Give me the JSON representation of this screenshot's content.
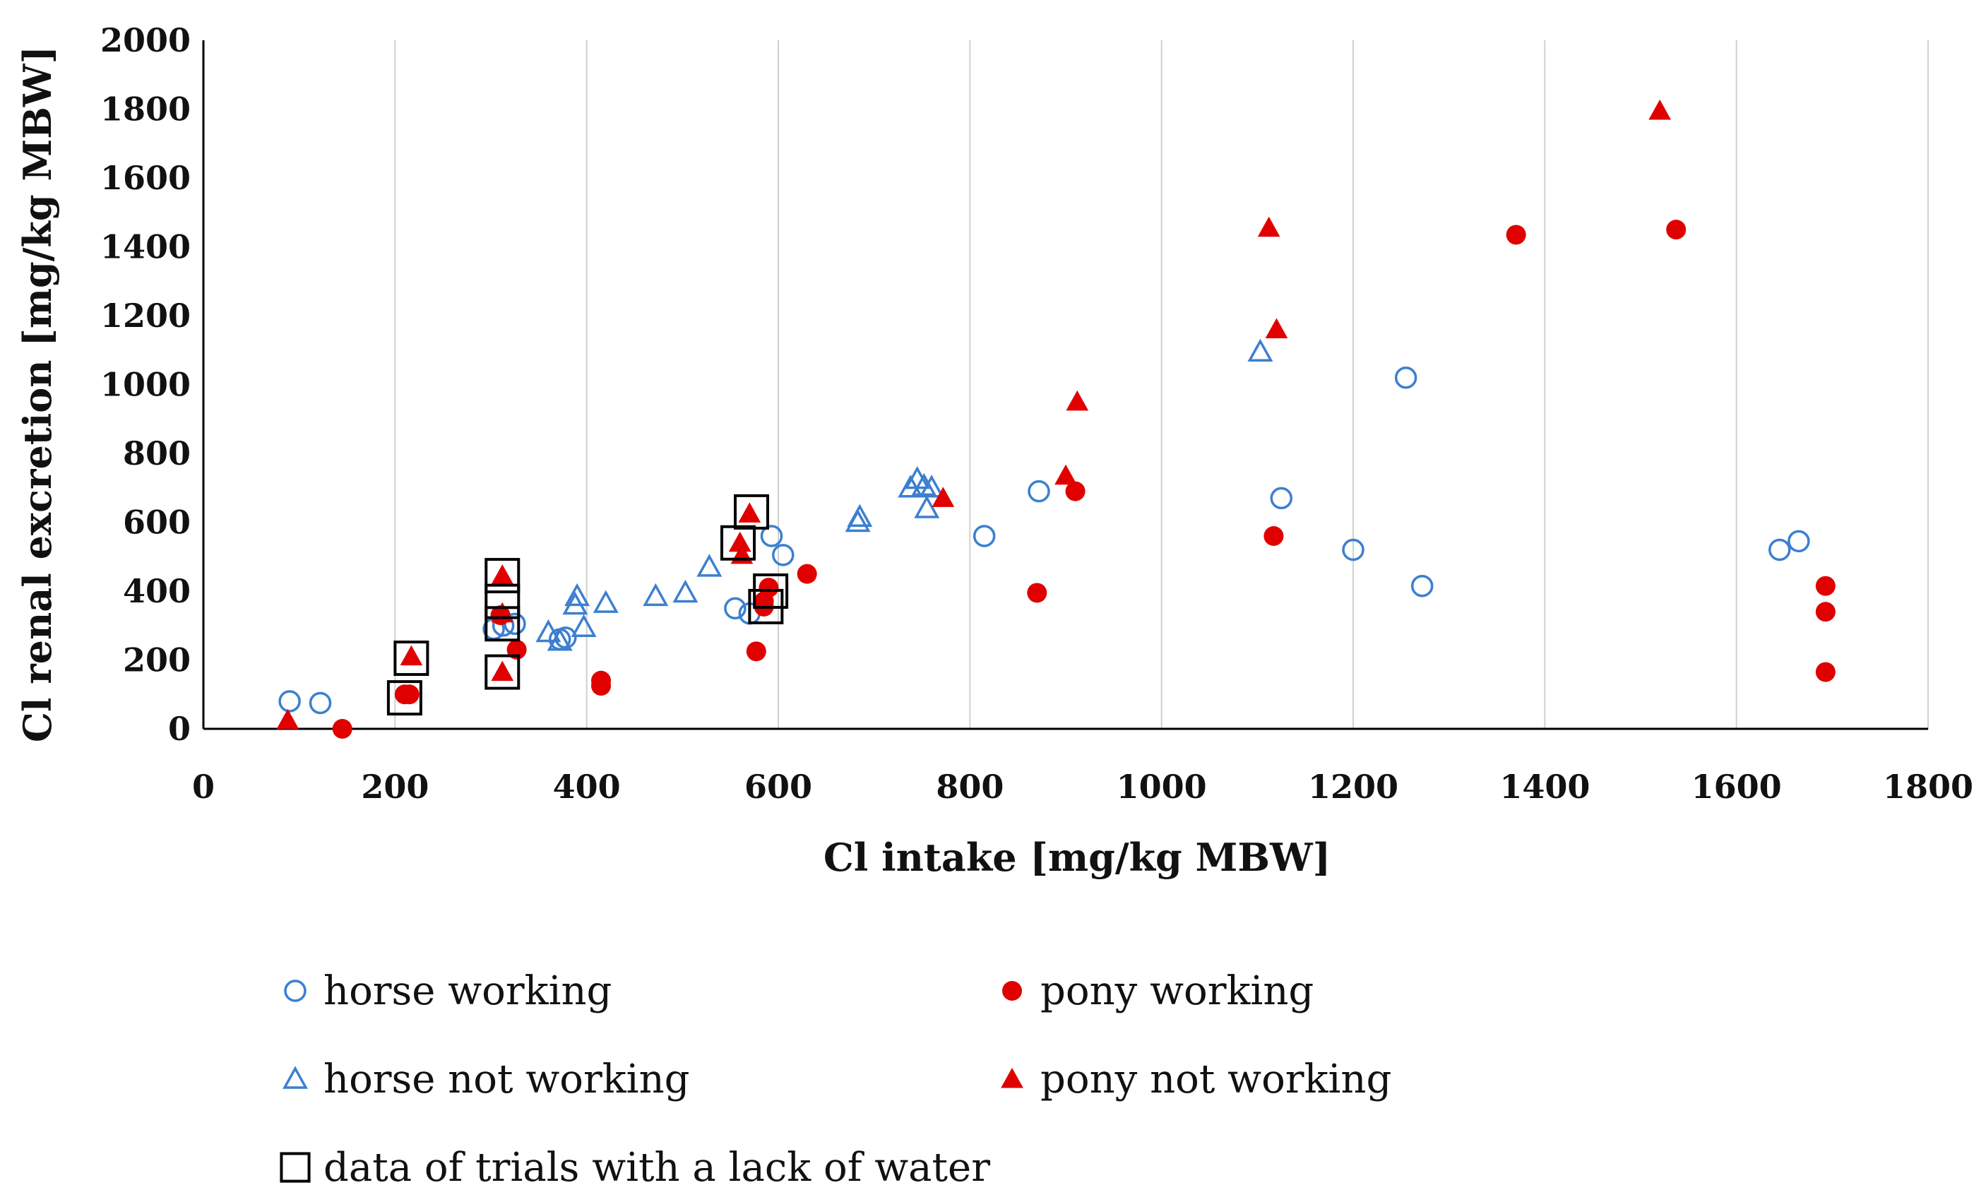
{
  "chart_data": {
    "type": "scatter",
    "title": "",
    "xlabel": "Cl intake [mg/kg MBW]",
    "ylabel": "Cl renal excretion [mg/kg MBW]",
    "xlim": [
      0,
      1800
    ],
    "ylim": [
      0,
      2000
    ],
    "xticks": [
      0,
      200,
      400,
      600,
      800,
      1000,
      1200,
      1400,
      1600,
      1800
    ],
    "yticks": [
      0,
      200,
      400,
      600,
      800,
      1000,
      1200,
      1400,
      1600,
      1800,
      2000
    ],
    "grid": "vertical",
    "legend_position": "bottom",
    "colors": {
      "blue": "#3c7fd0",
      "red": "#e00000",
      "black": "#000000"
    },
    "series": [
      {
        "name": "horse working",
        "marker": "circle-open",
        "color": "#3c7fd0",
        "points": [
          [
            90,
            80
          ],
          [
            122,
            75
          ],
          [
            303,
            290
          ],
          [
            313,
            300
          ],
          [
            325,
            305
          ],
          [
            372,
            260
          ],
          [
            378,
            265
          ],
          [
            555,
            350
          ],
          [
            570,
            335
          ],
          [
            593,
            560
          ],
          [
            605,
            505
          ],
          [
            815,
            560
          ],
          [
            872,
            690
          ],
          [
            1125,
            670
          ],
          [
            1200,
            520
          ],
          [
            1255,
            1020
          ],
          [
            1272,
            415
          ],
          [
            1645,
            520
          ],
          [
            1665,
            545
          ]
        ]
      },
      {
        "name": "horse not working",
        "marker": "triangle-open",
        "color": "#3c7fd0",
        "points": [
          [
            360,
            280
          ],
          [
            372,
            255
          ],
          [
            388,
            360
          ],
          [
            390,
            385
          ],
          [
            397,
            295
          ],
          [
            420,
            365
          ],
          [
            472,
            385
          ],
          [
            503,
            395
          ],
          [
            528,
            470
          ],
          [
            683,
            600
          ],
          [
            685,
            615
          ],
          [
            738,
            700
          ],
          [
            745,
            725
          ],
          [
            752,
            705
          ],
          [
            755,
            640
          ],
          [
            760,
            700
          ],
          [
            1103,
            1095
          ]
        ]
      },
      {
        "name": "pony working",
        "marker": "circle-filled",
        "color": "#e00000",
        "points": [
          [
            145,
            0
          ],
          [
            210,
            100
          ],
          [
            215,
            100
          ],
          [
            310,
            330
          ],
          [
            327,
            230
          ],
          [
            415,
            140
          ],
          [
            415,
            125
          ],
          [
            577,
            225
          ],
          [
            585,
            370
          ],
          [
            585,
            355
          ],
          [
            590,
            410
          ],
          [
            630,
            450
          ],
          [
            870,
            395
          ],
          [
            910,
            690
          ],
          [
            1117,
            560
          ],
          [
            1370,
            1435
          ],
          [
            1537,
            1450
          ],
          [
            1693,
            415
          ],
          [
            1693,
            340
          ],
          [
            1693,
            165
          ]
        ]
      },
      {
        "name": "pony not working",
        "marker": "triangle-filled",
        "color": "#e00000",
        "points": [
          [
            88,
            25
          ],
          [
            217,
            210
          ],
          [
            312,
            445
          ],
          [
            312,
            335
          ],
          [
            312,
            165
          ],
          [
            560,
            540
          ],
          [
            562,
            505
          ],
          [
            570,
            625
          ],
          [
            772,
            670
          ],
          [
            900,
            735
          ],
          [
            912,
            950
          ],
          [
            1112,
            1455
          ],
          [
            1120,
            1160
          ],
          [
            1520,
            1795
          ]
        ]
      },
      {
        "name": "data of trials with a lack of water",
        "marker": "square-open",
        "color": "#000000",
        "points": [
          [
            210,
            90
          ],
          [
            217,
            205
          ],
          [
            312,
            445
          ],
          [
            312,
            370
          ],
          [
            312,
            305
          ],
          [
            312,
            165
          ],
          [
            558,
            540
          ],
          [
            572,
            630
          ],
          [
            587,
            355
          ],
          [
            592,
            400
          ]
        ]
      }
    ]
  }
}
